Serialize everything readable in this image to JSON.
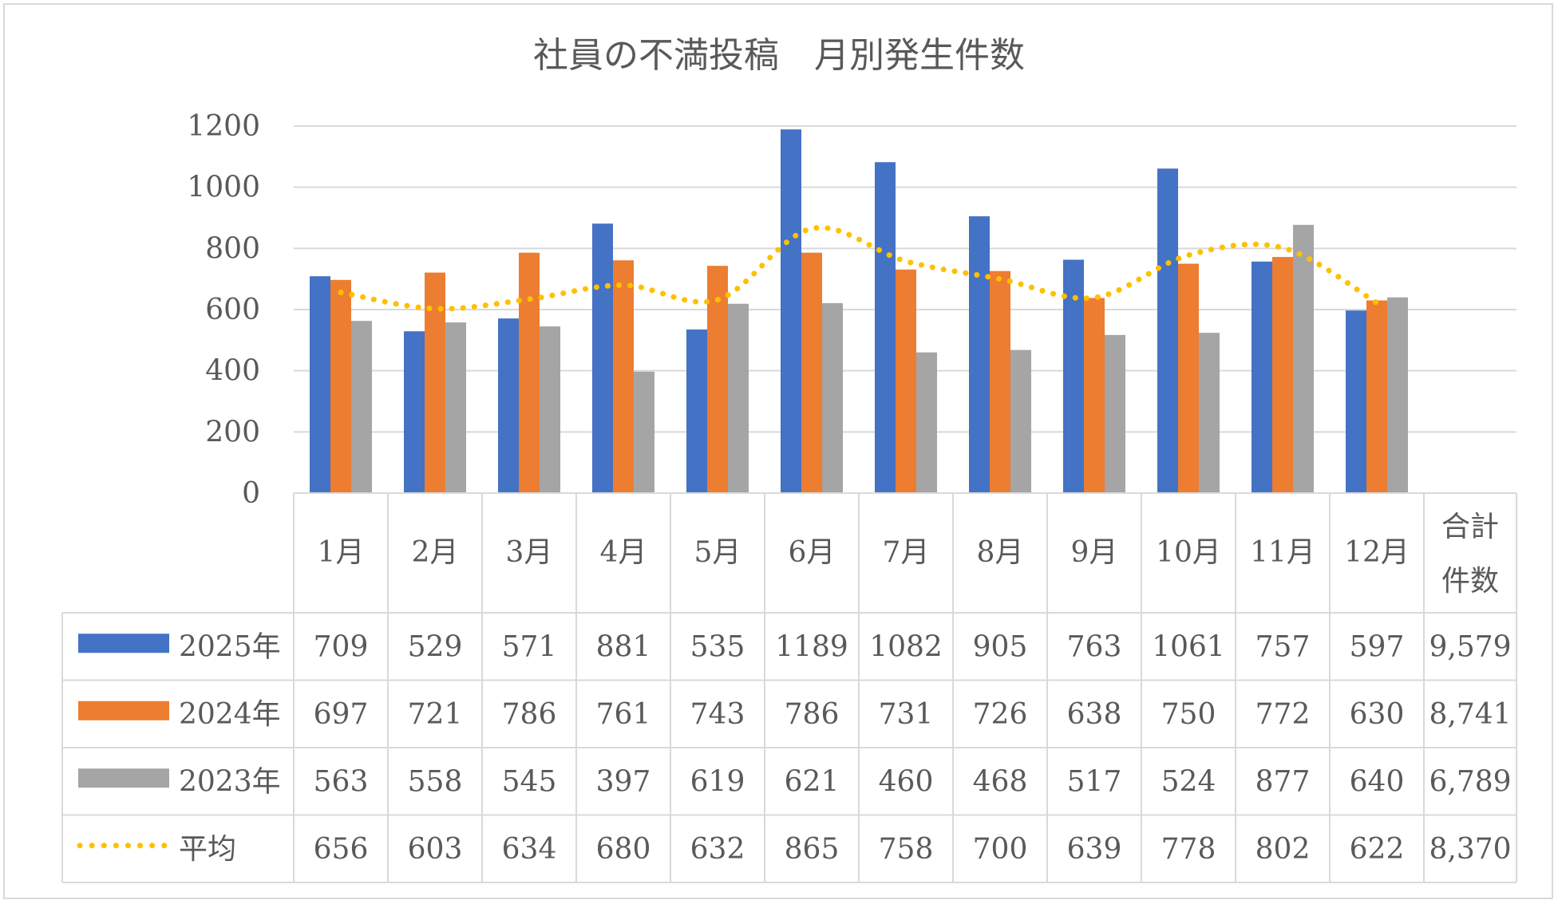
{
  "chart_data": {
    "type": "bar",
    "title": "社員の不満投稿　月別発生件数",
    "categories": [
      "1月",
      "2月",
      "3月",
      "4月",
      "5月",
      "6月",
      "7月",
      "8月",
      "9月",
      "10月",
      "11月",
      "12月"
    ],
    "total_header": [
      "合計",
      "件数"
    ],
    "ylim": [
      0,
      1200
    ],
    "yticks": [
      0,
      200,
      400,
      600,
      800,
      1000,
      1200
    ],
    "grid": true,
    "legend": "data-table",
    "series": [
      {
        "name": "2025年",
        "type": "bar",
        "color": "#4472c4",
        "values": [
          709,
          529,
          571,
          881,
          535,
          1189,
          1082,
          905,
          763,
          1061,
          757,
          597
        ],
        "total": "9,579"
      },
      {
        "name": "2024年",
        "type": "bar",
        "color": "#ed7d31",
        "values": [
          697,
          721,
          786,
          761,
          743,
          786,
          731,
          726,
          638,
          750,
          772,
          630
        ],
        "total": "8,741"
      },
      {
        "name": "2023年",
        "type": "bar",
        "color": "#a5a5a5",
        "values": [
          563,
          558,
          545,
          397,
          619,
          621,
          460,
          468,
          517,
          524,
          877,
          640
        ],
        "total": "6,789"
      },
      {
        "name": "平均",
        "type": "line",
        "style": "dotted",
        "color": "#ffc000",
        "values": [
          656,
          603,
          634,
          680,
          632,
          865,
          758,
          700,
          639,
          778,
          802,
          622
        ],
        "total": "8,370"
      }
    ]
  }
}
